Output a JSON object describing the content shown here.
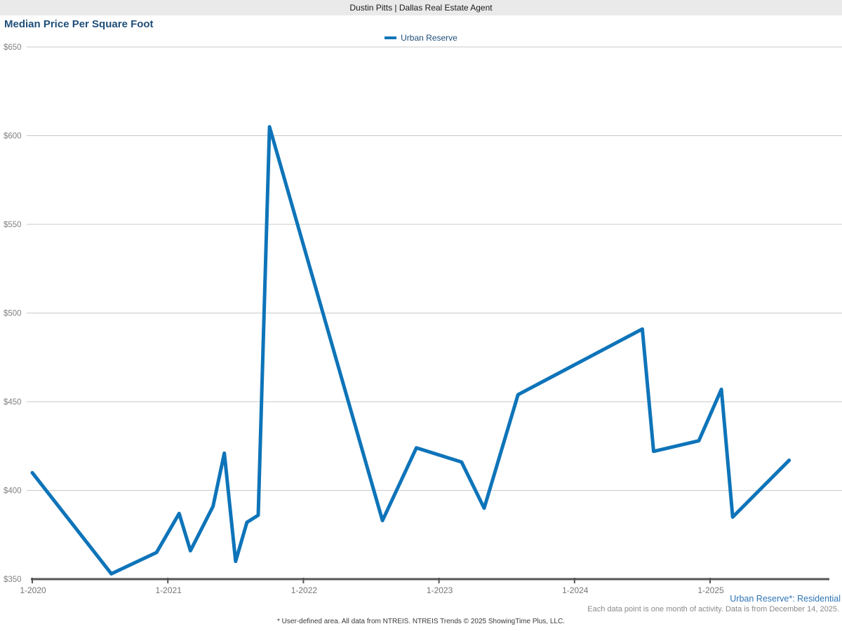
{
  "header": {
    "title": "Dustin Pitts | Dallas Real Estate Agent"
  },
  "chart": {
    "title": "Median Price Per Square Foot",
    "legend_label": "Urban Reserve"
  },
  "footer": {
    "area_label": "Urban Reserve*: Residential",
    "data_note": "Each data point is one month of activity. Data is from December 14, 2025.",
    "disclaimer": "* User-defined area. All data from NTREIS. NTREIS Trends © 2025 ShowingTime Plus, LLC."
  },
  "colors": {
    "line": "#0E74B9",
    "title_text": "#1F4E79",
    "legend_text": "#1F4E79",
    "area_label_text": "#2E75B6",
    "gridline": "#C9C9C9",
    "axis": "#555555",
    "y_label": "#808080",
    "x_label": "#757575",
    "header_bg": "#EAEAEA",
    "note_text": "#8A8A8A",
    "disclaimer_text": "#3A3A3A"
  },
  "chart_data": {
    "type": "line",
    "title": "Median Price Per Square Foot",
    "series_name": "Urban Reserve",
    "grid": true,
    "legend_position": "top-center",
    "ylim": [
      350,
      650
    ],
    "y_tick_step": 50,
    "y_tick_labels": [
      "$650",
      "$600",
      "$550",
      "$500",
      "$450",
      "$400",
      "$350"
    ],
    "x_tick_labels": [
      "1-2020",
      "1-2021",
      "1-2022",
      "1-2023",
      "1-2024",
      "1-2025"
    ],
    "points": [
      {
        "month": "1-2020",
        "value": 410
      },
      {
        "month": "8-2020",
        "value": 353
      },
      {
        "month": "12-2020",
        "value": 365
      },
      {
        "month": "2-2021",
        "value": 387
      },
      {
        "month": "3-2021",
        "value": 366
      },
      {
        "month": "5-2021",
        "value": 391
      },
      {
        "month": "6-2021",
        "value": 421
      },
      {
        "month": "7-2021",
        "value": 360
      },
      {
        "month": "8-2021",
        "value": 382
      },
      {
        "month": "9-2021",
        "value": 386
      },
      {
        "month": "10-2021",
        "value": 605
      },
      {
        "month": "8-2022",
        "value": 383
      },
      {
        "month": "11-2022",
        "value": 424
      },
      {
        "month": "3-2023",
        "value": 416
      },
      {
        "month": "5-2023",
        "value": 390
      },
      {
        "month": "8-2023",
        "value": 454
      },
      {
        "month": "7-2024",
        "value": 491
      },
      {
        "month": "8-2024",
        "value": 422
      },
      {
        "month": "12-2024",
        "value": 428
      },
      {
        "month": "2-2025",
        "value": 457
      },
      {
        "month": "3-2025",
        "value": 385
      },
      {
        "month": "8-2025",
        "value": 417
      }
    ]
  }
}
